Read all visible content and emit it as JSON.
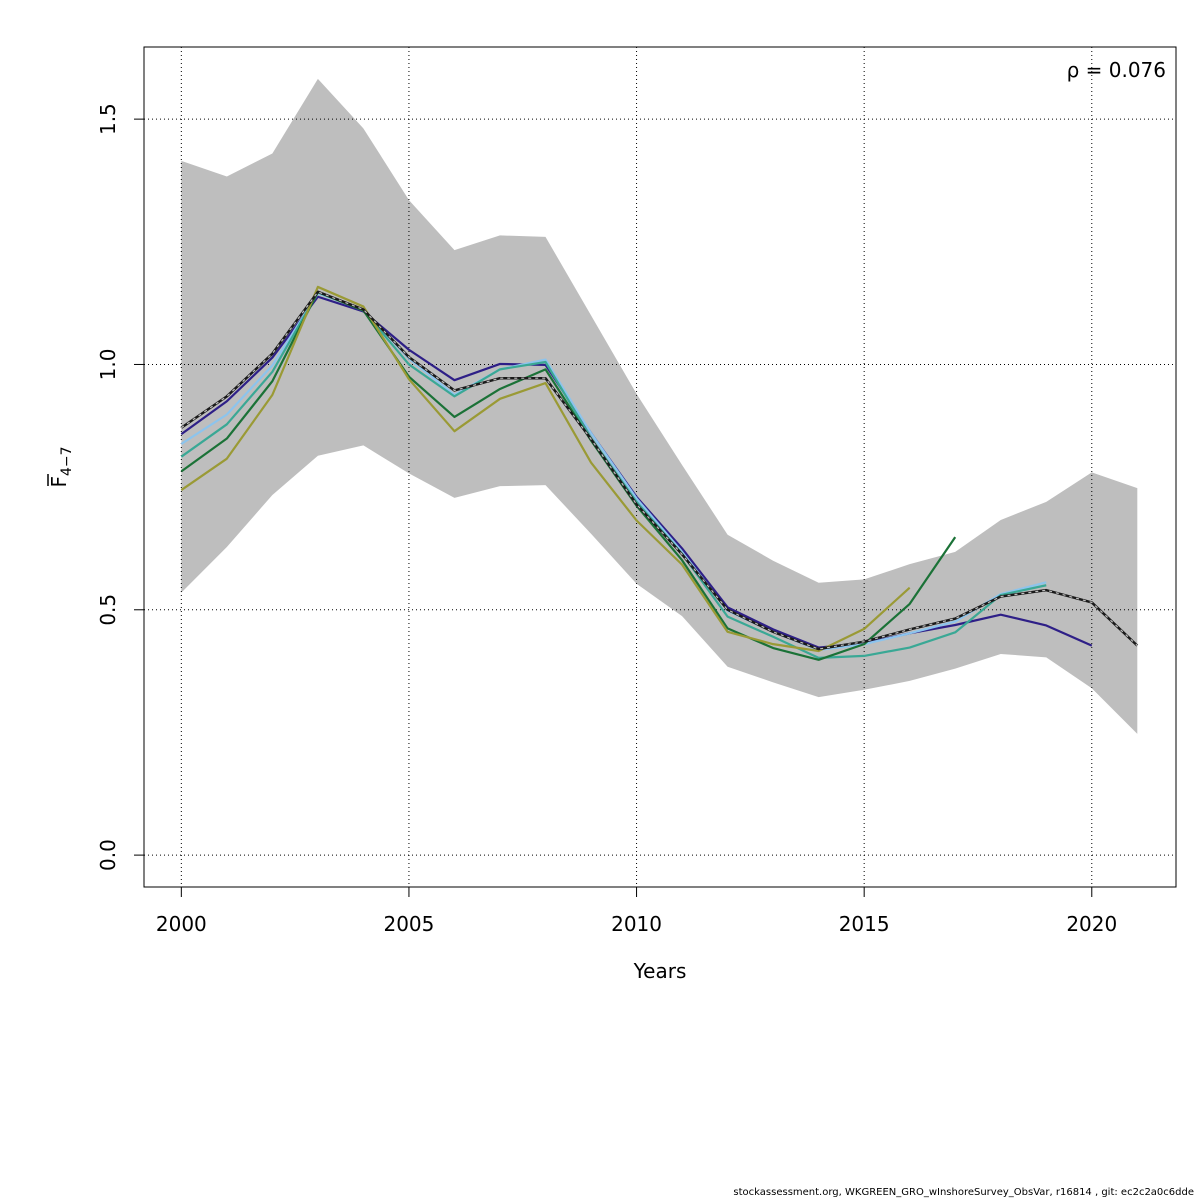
{
  "chart_data": {
    "type": "line",
    "xlabel": "Years",
    "ylabel_main": "F",
    "ylabel_sub": "4−7",
    "annotation": "ρ = 0.076",
    "x_ticks": [
      2000,
      2005,
      2010,
      2015,
      2020
    ],
    "y_ticks": [
      "0.0",
      "0.5",
      "1.0",
      "1.5"
    ],
    "y_tick_values": [
      0,
      0.5,
      1.0,
      1.5
    ],
    "xlim": [
      1999.18,
      2021.85
    ],
    "ylim": [
      -0.065,
      1.647
    ],
    "grid": true,
    "confidence_band": {
      "x": [
        2000,
        2001,
        2002,
        2003,
        2004,
        2005,
        2006,
        2007,
        2008,
        2009,
        2010,
        2011,
        2012,
        2013,
        2014,
        2015,
        2016,
        2017,
        2018,
        2019,
        2020,
        2021
      ],
      "upper": [
        1.415,
        1.383,
        1.43,
        1.582,
        1.481,
        1.335,
        1.233,
        1.263,
        1.26,
        1.1,
        0.94,
        0.795,
        0.653,
        0.6,
        0.555,
        0.562,
        0.593,
        0.618,
        0.683,
        0.72,
        0.78,
        0.748
      ],
      "lower": [
        0.535,
        0.628,
        0.734,
        0.814,
        0.835,
        0.778,
        0.728,
        0.752,
        0.754,
        0.655,
        0.553,
        0.487,
        0.384,
        0.352,
        0.322,
        0.337,
        0.355,
        0.38,
        0.41,
        0.403,
        0.34,
        0.247
      ]
    },
    "colors": {
      "band": "#bebebe",
      "grid": "#000000",
      "base_line": "#1a1a1a",
      "base_dash": "#bfbfbf"
    },
    "series": [
      {
        "color": "#2e1f87",
        "x": [
          2000,
          2001,
          2002,
          2003,
          2004,
          2005,
          2006,
          2007,
          2008,
          2009,
          2010,
          2011,
          2012,
          2013,
          2014,
          2015,
          2016,
          2017,
          2018,
          2019,
          2020
        ],
        "values": [
          0.858,
          0.925,
          1.014,
          1.138,
          1.108,
          1.03,
          0.968,
          1.001,
          0.999,
          0.86,
          0.73,
          0.625,
          0.505,
          0.46,
          0.423,
          0.432,
          0.452,
          0.469,
          0.49,
          0.468,
          0.427
        ]
      },
      {
        "color": "#8cc4ed",
        "x": [
          2000,
          2001,
          2002,
          2003,
          2004,
          2005,
          2006,
          2007,
          2008,
          2009,
          2010,
          2011,
          2012,
          2013,
          2014,
          2015,
          2016,
          2017,
          2018,
          2019
        ],
        "values": [
          0.838,
          0.898,
          0.998,
          1.145,
          1.112,
          1.012,
          0.938,
          0.99,
          1.01,
          0.86,
          0.727,
          0.618,
          0.498,
          0.455,
          0.418,
          0.43,
          0.452,
          0.476,
          0.532,
          0.556
        ]
      },
      {
        "color": "#3aa895",
        "x": [
          2000,
          2001,
          2002,
          2003,
          2004,
          2005,
          2006,
          2007,
          2008,
          2009,
          2010,
          2011,
          2012,
          2013,
          2014,
          2015,
          2016,
          2017,
          2018,
          2019
        ],
        "values": [
          0.812,
          0.878,
          0.985,
          1.147,
          1.11,
          1.0,
          0.935,
          0.99,
          1.005,
          0.85,
          0.72,
          0.614,
          0.486,
          0.445,
          0.402,
          0.406,
          0.423,
          0.454,
          0.53,
          0.55
        ]
      },
      {
        "color": "#1b7237",
        "x": [
          2000,
          2001,
          2002,
          2003,
          2004,
          2005,
          2006,
          2007,
          2008,
          2009,
          2010,
          2011,
          2012,
          2013,
          2014,
          2015,
          2016,
          2017
        ],
        "values": [
          0.782,
          0.849,
          0.966,
          1.148,
          1.11,
          0.975,
          0.893,
          0.95,
          0.99,
          0.845,
          0.712,
          0.601,
          0.462,
          0.422,
          0.398,
          0.43,
          0.512,
          0.648
        ]
      },
      {
        "color": "#9a9a35",
        "x": [
          2000,
          2001,
          2002,
          2003,
          2004,
          2005,
          2006,
          2007,
          2008,
          2009,
          2010,
          2011,
          2012,
          2013,
          2014,
          2015,
          2016
        ],
        "values": [
          0.744,
          0.808,
          0.938,
          1.158,
          1.118,
          0.97,
          0.864,
          0.93,
          0.962,
          0.8,
          0.682,
          0.592,
          0.455,
          0.43,
          0.416,
          0.461,
          0.545
        ]
      },
      {
        "color": "#1a1a1a",
        "dashed": true,
        "x": [
          2000,
          2001,
          2002,
          2003,
          2004,
          2005,
          2006,
          2007,
          2008,
          2009,
          2010,
          2011,
          2012,
          2013,
          2014,
          2015,
          2016,
          2017,
          2018,
          2019,
          2020,
          2021
        ],
        "values": [
          0.871,
          0.935,
          1.022,
          1.148,
          1.112,
          1.015,
          0.947,
          0.972,
          0.972,
          0.848,
          0.715,
          0.613,
          0.5,
          0.455,
          0.42,
          0.435,
          0.46,
          0.482,
          0.527,
          0.54,
          0.515,
          0.427
        ]
      }
    ]
  },
  "footer": {
    "text": "stockassessment.org, WKGREEN_GRO_wInshoreSurvey_ObsVar, r16814 , git: ec2c2a0c6dde"
  }
}
